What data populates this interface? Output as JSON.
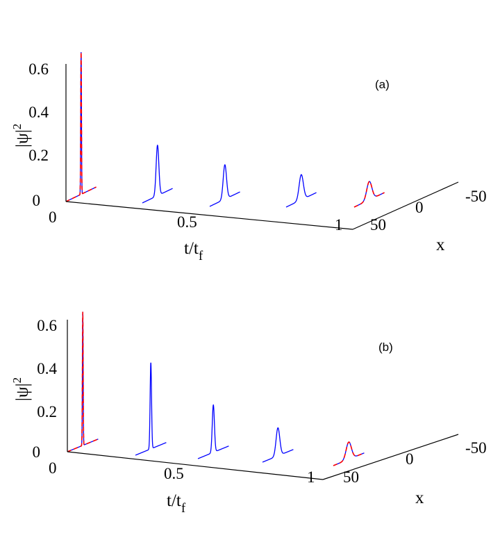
{
  "panels": [
    {
      "tag": "(a)",
      "ylabel": "|ψ|",
      "ylabel_sup": "2",
      "xlabel": "t/t",
      "xlabel_sub": "f",
      "zlabel": "x",
      "yticks": [
        "0",
        "0.2",
        "0.4",
        "0.6"
      ],
      "xticks": [
        "0",
        "0.5",
        "1"
      ],
      "zticks": [
        "50",
        "0",
        "-50"
      ],
      "peaks": [
        0.62,
        0.22,
        0.15,
        0.11,
        0.08
      ],
      "widths": [
        1.2,
        4.5,
        5.5,
        7.0,
        8.5
      ]
    },
    {
      "tag": "(b)",
      "ylabel": "|ψ|",
      "ylabel_sup": "2",
      "xlabel": "t/t",
      "xlabel_sub": "f",
      "zlabel": "x",
      "yticks": [
        "0",
        "0.2",
        "0.4",
        "0.6"
      ],
      "xticks": [
        "0",
        "0.5",
        "1"
      ],
      "zticks": [
        "50",
        "0",
        "-50"
      ],
      "peaks": [
        0.62,
        0.4,
        0.22,
        0.13,
        0.08
      ],
      "widths": [
        1.2,
        2.3,
        3.5,
        6.0,
        8.5
      ]
    }
  ],
  "chart_data": [
    {
      "type": "line",
      "title": "(a)",
      "xlabel": "t/t_f",
      "ylabel": "|ψ|^2",
      "zlabel": "x",
      "t_values": [
        0,
        0.25,
        0.5,
        0.75,
        1.0
      ],
      "x_range": [
        -50,
        50
      ],
      "ylim": [
        0,
        0.6
      ],
      "peak_values": [
        0.62,
        0.22,
        0.15,
        0.11,
        0.08
      ],
      "series_colors": {
        "numerical": "#0000ff",
        "analytical": "#ff0000"
      }
    },
    {
      "type": "line",
      "title": "(b)",
      "xlabel": "t/t_f",
      "ylabel": "|ψ|^2",
      "zlabel": "x",
      "t_values": [
        0,
        0.25,
        0.5,
        0.75,
        1.0
      ],
      "x_range": [
        -50,
        50
      ],
      "ylim": [
        0,
        0.6
      ],
      "peak_values": [
        0.62,
        0.4,
        0.22,
        0.13,
        0.08
      ],
      "series_colors": {
        "numerical": "#0000ff",
        "analytical": "#ff0000"
      }
    }
  ]
}
